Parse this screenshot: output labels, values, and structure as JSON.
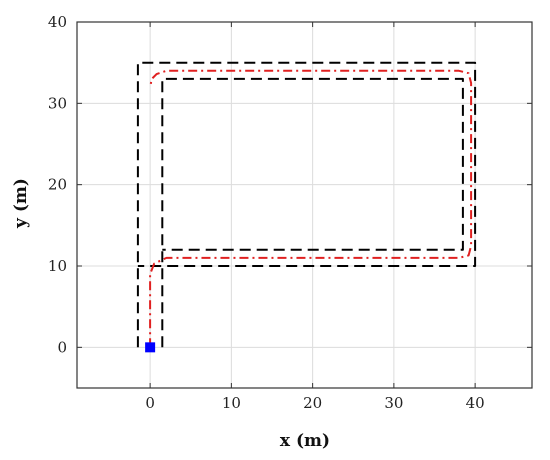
{
  "chart_data": {
    "type": "line",
    "title": "",
    "xlabel": "x (m)",
    "ylabel": "y (m)",
    "xlim": [
      -9,
      47
    ],
    "ylim": [
      -5,
      40
    ],
    "x_ticks": [
      0,
      10,
      20,
      30,
      40
    ],
    "y_ticks": [
      0,
      10,
      20,
      30,
      40
    ],
    "grid": true,
    "series": [
      {
        "role": "outer-boundary",
        "style": "dashed",
        "color": "#000000",
        "x": [
          -1.5,
          -1.5,
          40,
          40,
          -1.5
        ],
        "y": [
          0,
          35,
          35,
          10,
          10
        ]
      },
      {
        "role": "inner-boundary",
        "style": "dashed",
        "color": "#000000",
        "x": [
          1.5,
          1.5,
          38.5,
          38.5,
          1.5
        ],
        "y": [
          0,
          33,
          33,
          12,
          12
        ]
      },
      {
        "role": "path",
        "style": "dashdot",
        "color": "#e02020",
        "x": [
          0,
          0,
          0.5,
          2,
          38,
          39.2,
          39.5,
          39.5,
          39.2,
          38,
          2,
          0.8,
          0.2,
          0
        ],
        "y": [
          0,
          9,
          10.3,
          11,
          11,
          11.3,
          12.5,
          32.5,
          33.7,
          34,
          34,
          33.6,
          33,
          32
        ]
      },
      {
        "role": "start-point",
        "style": "marker",
        "color": "#0000ff",
        "x": [
          0
        ],
        "y": [
          0
        ]
      }
    ]
  }
}
